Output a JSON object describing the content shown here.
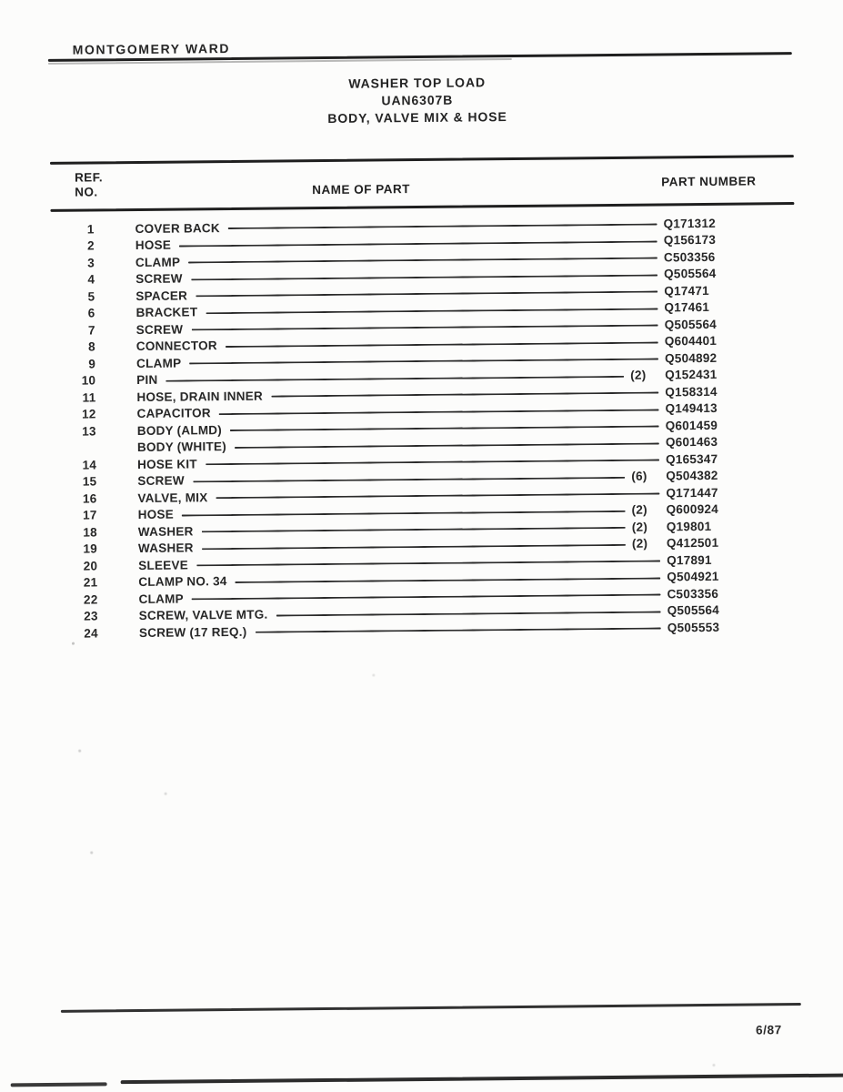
{
  "page": {
    "brand": "MONTGOMERY WARD",
    "title_line1": "WASHER TOP LOAD",
    "title_line2": "UAN6307B",
    "title_line3": "BODY, VALVE MIX & HOSE",
    "footer_date": "6/87"
  },
  "colors": {
    "ink": "#222222",
    "paper": "#fcfcfb"
  },
  "table": {
    "headers": {
      "ref": "REF.",
      "no": "NO.",
      "name": "NAME OF PART",
      "part": "PART NUMBER"
    },
    "rows": [
      {
        "ref": "1",
        "name": "COVER BACK",
        "qty": "",
        "part": "Q171312"
      },
      {
        "ref": "2",
        "name": "HOSE",
        "qty": "",
        "part": "Q156173"
      },
      {
        "ref": "3",
        "name": "CLAMP",
        "qty": "",
        "part": "C503356"
      },
      {
        "ref": "4",
        "name": "SCREW",
        "qty": "",
        "part": "Q505564"
      },
      {
        "ref": "5",
        "name": "SPACER",
        "qty": "",
        "part": "Q17471"
      },
      {
        "ref": "6",
        "name": "BRACKET",
        "qty": "",
        "part": "Q17461"
      },
      {
        "ref": "7",
        "name": "SCREW",
        "qty": "",
        "part": "Q505564"
      },
      {
        "ref": "8",
        "name": "CONNECTOR",
        "qty": "",
        "part": "Q604401"
      },
      {
        "ref": "9",
        "name": "CLAMP",
        "qty": "",
        "part": "Q504892"
      },
      {
        "ref": "10",
        "name": "PIN",
        "qty": "(2)",
        "part": "Q152431"
      },
      {
        "ref": "11",
        "name": "HOSE, DRAIN INNER",
        "qty": "",
        "part": "Q158314"
      },
      {
        "ref": "12",
        "name": "CAPACITOR",
        "qty": "",
        "part": "Q149413"
      },
      {
        "ref": "13",
        "name": "BODY (ALMD)",
        "qty": "",
        "part": "Q601459"
      },
      {
        "ref": "",
        "name": "BODY (WHITE)",
        "qty": "",
        "part": "Q601463"
      },
      {
        "ref": "14",
        "name": "HOSE KIT",
        "qty": "",
        "part": "Q165347"
      },
      {
        "ref": "15",
        "name": "SCREW",
        "qty": "(6)",
        "part": "Q504382"
      },
      {
        "ref": "16",
        "name": "VALVE, MIX",
        "qty": "",
        "part": "Q171447"
      },
      {
        "ref": "17",
        "name": "HOSE",
        "qty": "(2)",
        "part": "Q600924"
      },
      {
        "ref": "18",
        "name": "WASHER",
        "qty": "(2)",
        "part": "Q19801"
      },
      {
        "ref": "19",
        "name": "WASHER",
        "qty": "(2)",
        "part": "Q412501"
      },
      {
        "ref": "20",
        "name": "SLEEVE",
        "qty": "",
        "part": "Q17891"
      },
      {
        "ref": "21",
        "name": "CLAMP NO. 34",
        "qty": "",
        "part": "Q504921"
      },
      {
        "ref": "22",
        "name": "CLAMP",
        "qty": "",
        "part": "C503356"
      },
      {
        "ref": "23",
        "name": "SCREW, VALVE MTG.",
        "qty": "",
        "part": "Q505564"
      },
      {
        "ref": "24",
        "name": "SCREW (17 REQ.)",
        "qty": "",
        "part": "Q505553"
      }
    ]
  }
}
